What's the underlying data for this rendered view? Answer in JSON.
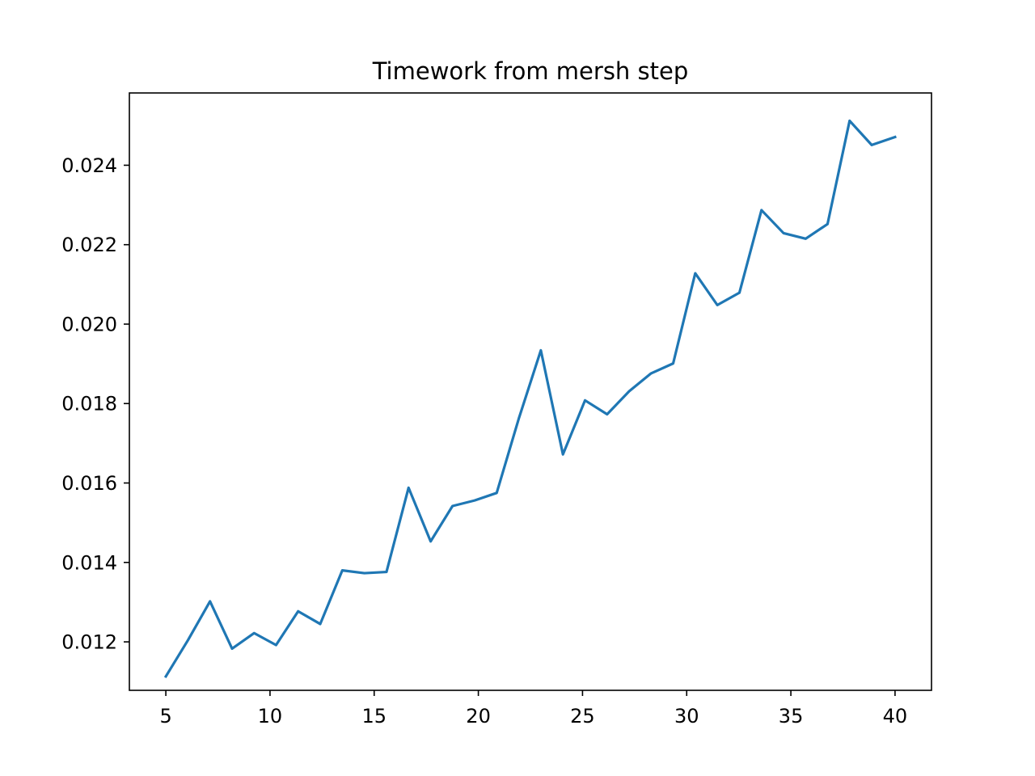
{
  "chart_data": {
    "type": "line",
    "title": "Timework from mersh step",
    "xlabel": "",
    "ylabel": "",
    "xlim": [
      3.25,
      41.75
    ],
    "ylim": [
      0.01078,
      0.02582
    ],
    "xticks": [
      5,
      10,
      15,
      20,
      25,
      30,
      35,
      40
    ],
    "xtick_labels": [
      "5",
      "10",
      "15",
      "20",
      "25",
      "30",
      "35",
      "40"
    ],
    "yticks": [
      0.012,
      0.014,
      0.016,
      0.018,
      0.02,
      0.022,
      0.024
    ],
    "ytick_labels": [
      "0.012",
      "0.014",
      "0.016",
      "0.018",
      "0.020",
      "0.022",
      "0.024"
    ],
    "grid": false,
    "series": [
      {
        "color": "#1f77b4",
        "x": [
          5,
          6.06,
          7.12,
          8.18,
          9.24,
          10.29,
          11.35,
          12.41,
          13.47,
          14.53,
          15.59,
          16.65,
          17.71,
          18.76,
          19.82,
          20.88,
          21.94,
          23.0,
          24.06,
          25.12,
          26.18,
          27.24,
          28.29,
          29.35,
          30.41,
          31.47,
          32.53,
          33.59,
          34.65,
          35.71,
          36.76,
          37.82,
          38.88,
          40.0
        ],
        "y": [
          0.01113,
          0.01204,
          0.01302,
          0.01183,
          0.01222,
          0.01192,
          0.01277,
          0.01245,
          0.0138,
          0.01373,
          0.01376,
          0.01588,
          0.01453,
          0.01542,
          0.01556,
          0.01575,
          0.01762,
          0.01934,
          0.01672,
          0.01808,
          0.01773,
          0.01831,
          0.01876,
          0.01901,
          0.02128,
          0.02048,
          0.02079,
          0.02287,
          0.02229,
          0.02215,
          0.02252,
          0.02512,
          0.02451,
          0.02471
        ]
      }
    ]
  }
}
